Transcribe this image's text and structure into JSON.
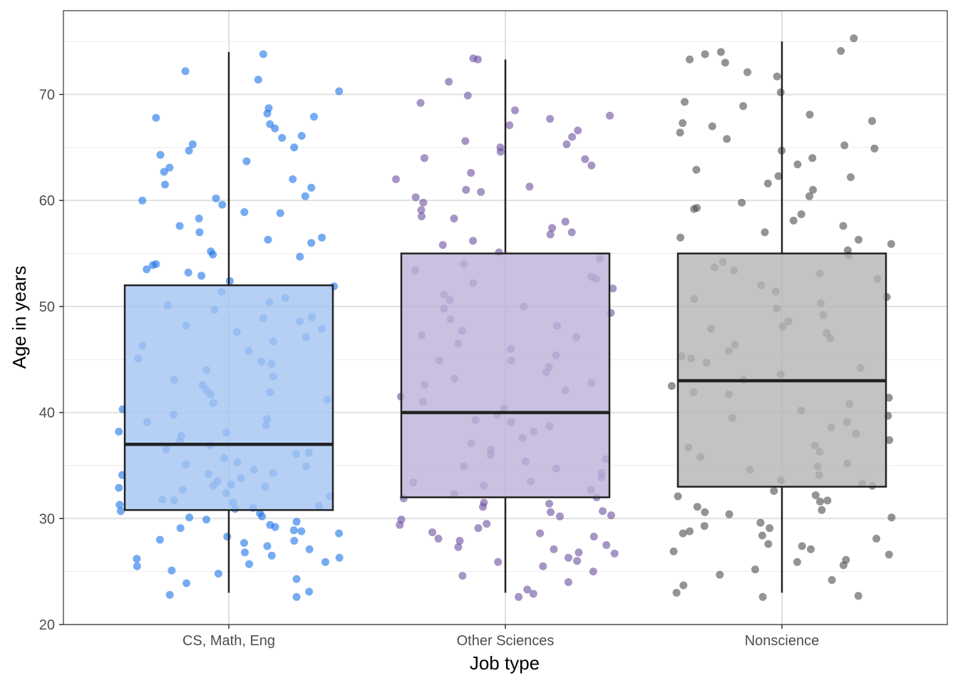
{
  "chart_data": {
    "type": "boxplot",
    "title": "",
    "xlabel": "Job type",
    "ylabel": "Age in years",
    "ylim": [
      20,
      77.9
    ],
    "yticks": [
      20,
      30,
      40,
      50,
      60,
      70
    ],
    "grid": true,
    "legend": "none",
    "categories": [
      "CS, Math, Eng",
      "Other Sciences",
      "Nonscience"
    ],
    "colors": {
      "points": [
        "#1a73e8",
        "#6a4f9e",
        "#4d4d4d"
      ],
      "box_fill": [
        "#a3c3f2",
        "#bcb2d7",
        "#b4b4b4"
      ]
    },
    "boxes": [
      {
        "name": "CS, Math, Eng",
        "whisker_low": 23,
        "q1": 30.8,
        "median": 37,
        "q3": 52,
        "whisker_high": 74
      },
      {
        "name": "Other Sciences",
        "whisker_low": 23,
        "q1": 32,
        "median": 40,
        "q3": 55,
        "whisker_high": 73.3
      },
      {
        "name": "Nonscience",
        "whisker_low": 23,
        "q1": 33,
        "median": 43,
        "q3": 55,
        "whisker_high": 75
      }
    ],
    "points": [
      [
        73.8,
        72.2,
        71.4,
        70.3,
        68.7,
        68.2,
        67.8,
        67.9,
        66.8,
        66.1,
        65.9,
        65.3,
        65.0,
        64.3,
        63.7,
        63.1,
        62.7,
        62.0,
        61.2,
        60.4,
        60.0,
        59.6,
        58.8,
        58.3,
        57.6,
        57.0,
        56.5,
        56.0,
        55.2,
        54.9,
        54.7,
        54.0,
        53.9,
        53.2,
        52.9,
        52.4,
        51.9,
        51.4,
        50.8,
        50.1,
        49.7,
        49.0,
        48.6,
        48.2,
        47.6,
        47.1,
        46.7,
        46.3,
        45.8,
        45.1,
        44.6,
        44.0,
        43.4,
        43.1,
        42.6,
        42.1,
        41.7,
        41.2,
        40.9,
        40.3,
        39.8,
        39.1,
        38.8,
        38.2,
        37.8,
        37.3,
        36.9,
        36.5,
        36.1,
        35.7,
        35.3,
        34.9,
        34.6,
        34.3,
        34.1,
        33.8,
        33.5,
        33.2,
        33.0,
        32.7,
        32.4,
        32.1,
        31.8,
        31.5,
        31.2,
        31.0,
        30.7,
        30.5,
        30.2,
        29.9,
        29.7,
        29.4,
        29.1,
        28.9,
        28.6,
        28.3,
        28.0,
        27.7,
        27.4,
        27.1,
        26.8,
        26.5,
        26.2,
        25.9,
        25.5,
        25.1,
        24.8,
        24.3,
        23.9,
        23.1,
        22.8,
        22.6,
        34.2,
        33.1,
        31.3,
        30.1,
        29.2,
        28.8,
        27.9,
        26.3,
        25.7,
        36.2,
        35.1,
        32.9,
        31.7,
        30.9,
        44.8,
        41.9,
        39.4,
        38.1,
        48.9,
        47.9,
        50.4,
        53.5,
        58.9,
        61.5,
        56.3,
        60.2,
        64.7,
        67.2
      ],
      [
        73.4,
        73.3,
        71.2,
        69.9,
        69.2,
        68.5,
        68.0,
        67.7,
        67.1,
        66.6,
        66.0,
        65.6,
        65.0,
        64.6,
        64.0,
        63.3,
        62.6,
        62.0,
        61.3,
        60.8,
        60.3,
        59.8,
        59.1,
        58.5,
        58.0,
        57.4,
        56.8,
        56.2,
        55.8,
        55.1,
        54.5,
        54.0,
        53.4,
        52.8,
        52.2,
        51.7,
        51.1,
        50.6,
        50.0,
        49.4,
        48.8,
        48.2,
        47.7,
        47.1,
        46.5,
        46.0,
        45.4,
        44.9,
        44.3,
        43.8,
        43.2,
        42.6,
        42.1,
        41.5,
        41.0,
        40.4,
        39.8,
        39.3,
        38.7,
        38.2,
        37.6,
        37.1,
        36.5,
        36.0,
        35.4,
        34.9,
        34.3,
        33.9,
        33.5,
        33.1,
        32.7,
        32.3,
        31.9,
        31.5,
        31.1,
        30.7,
        30.3,
        29.9,
        29.5,
        29.1,
        28.7,
        28.3,
        27.9,
        27.5,
        27.1,
        26.7,
        26.3,
        25.9,
        25.5,
        25.0,
        24.6,
        24.0,
        23.3,
        22.9,
        22.6,
        33.4,
        32.0,
        30.2,
        29.4,
        28.6,
        27.3,
        26.0,
        34.7,
        35.6,
        39.1,
        42.8,
        44.9,
        47.3,
        49.8,
        52.6,
        57.0,
        58.3,
        61.0,
        63.9,
        65.3,
        31.4,
        30.6,
        28.1,
        26.8
      ],
      [
        75.3,
        74.1,
        74.0,
        73.8,
        73.3,
        73.0,
        72.1,
        71.7,
        70.2,
        69.3,
        68.9,
        68.1,
        67.5,
        67.0,
        66.4,
        65.8,
        65.2,
        64.7,
        64.0,
        63.4,
        62.9,
        62.2,
        61.6,
        61.0,
        60.4,
        59.8,
        59.3,
        58.7,
        58.1,
        57.6,
        57.0,
        56.5,
        55.9,
        55.3,
        54.8,
        54.2,
        53.7,
        53.1,
        52.6,
        52.0,
        51.4,
        50.9,
        50.3,
        49.8,
        49.2,
        48.6,
        48.1,
        47.5,
        47.0,
        46.4,
        45.8,
        45.3,
        44.7,
        44.2,
        43.6,
        43.1,
        42.5,
        41.9,
        41.4,
        40.8,
        40.2,
        39.7,
        39.1,
        38.6,
        38.0,
        37.4,
        36.9,
        36.3,
        35.8,
        35.2,
        34.6,
        34.1,
        33.6,
        33.1,
        32.6,
        32.1,
        31.6,
        31.1,
        30.6,
        30.1,
        29.6,
        29.1,
        28.6,
        28.1,
        27.6,
        27.1,
        26.6,
        26.1,
        25.6,
        25.2,
        24.7,
        24.2,
        23.7,
        23.0,
        22.7,
        22.6,
        33.3,
        32.2,
        30.4,
        29.3,
        28.8,
        27.4,
        25.9,
        34.9,
        36.7,
        39.5,
        41.7,
        45.1,
        47.9,
        50.7,
        53.4,
        56.3,
        59.2,
        62.3,
        64.9,
        67.3,
        31.7,
        30.8,
        28.4,
        26.9
      ]
    ]
  }
}
